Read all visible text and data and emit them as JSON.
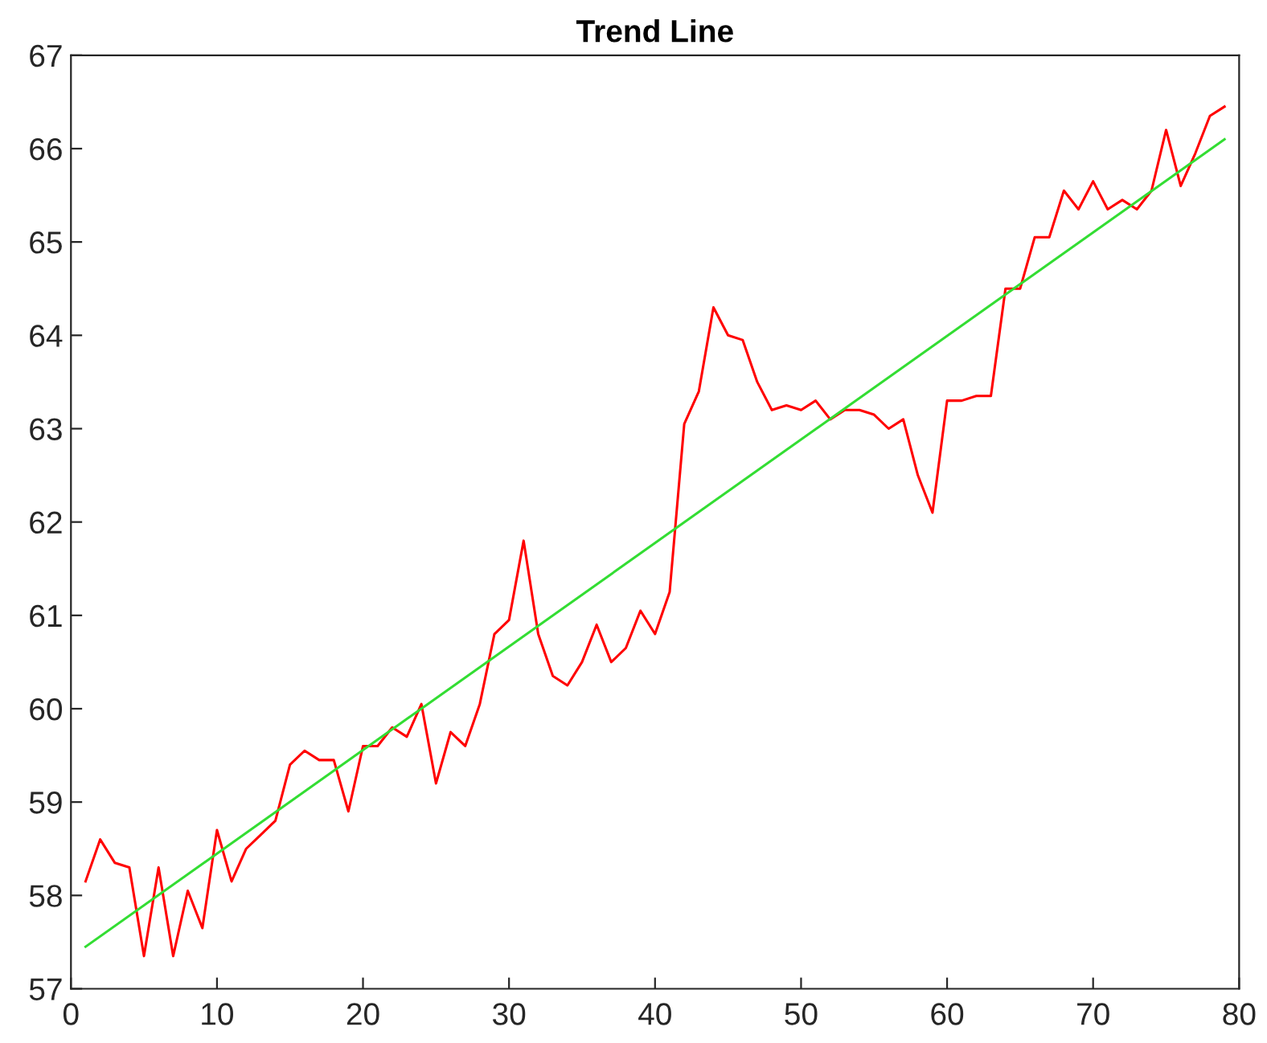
{
  "chart_data": {
    "type": "line",
    "title": "Trend Line",
    "xlim": [
      0,
      80
    ],
    "xticks": [
      0,
      10,
      20,
      30,
      40,
      50,
      60,
      70,
      80
    ],
    "ylim": [
      57,
      67
    ],
    "yticks": [
      57,
      58,
      59,
      60,
      61,
      62,
      63,
      64,
      65,
      66,
      67
    ],
    "grid": false,
    "marker": "none",
    "line_style": "solid",
    "series": [
      {
        "color": "#ff0000",
        "x": [
          1,
          2,
          3,
          4,
          5,
          6,
          7,
          8,
          9,
          10,
          11,
          12,
          13,
          14,
          15,
          16,
          17,
          18,
          19,
          20,
          21,
          22,
          23,
          24,
          25,
          26,
          27,
          28,
          29,
          30,
          31,
          32,
          33,
          34,
          35,
          36,
          37,
          38,
          39,
          40,
          41,
          42,
          43,
          44,
          45,
          46,
          47,
          48,
          49,
          50,
          51,
          52,
          53,
          54,
          55,
          56,
          57,
          58,
          59,
          60,
          61,
          62,
          63,
          64,
          65,
          66,
          67,
          68,
          69,
          70,
          71,
          72,
          73,
          74,
          75,
          76,
          77,
          78,
          79
        ],
        "values": [
          58.15,
          58.6,
          58.35,
          58.3,
          57.35,
          58.3,
          57.35,
          58.05,
          57.65,
          58.7,
          58.15,
          58.5,
          58.65,
          58.8,
          59.4,
          59.55,
          59.45,
          59.45,
          58.9,
          59.6,
          59.6,
          59.8,
          59.7,
          60.05,
          59.2,
          59.75,
          59.6,
          60.05,
          60.8,
          60.95,
          61.8,
          60.8,
          60.35,
          60.25,
          60.5,
          60.9,
          60.5,
          60.65,
          61.05,
          60.8,
          61.25,
          63.05,
          63.4,
          64.3,
          64.0,
          63.95,
          63.5,
          63.2,
          63.25,
          63.2,
          63.3,
          63.1,
          63.2,
          63.2,
          63.15,
          63.0,
          63.1,
          62.5,
          62.1,
          63.3,
          63.3,
          63.35,
          63.35,
          64.5,
          64.5,
          65.05,
          65.05,
          65.55,
          65.35,
          65.65,
          65.35,
          65.45,
          65.35,
          65.55,
          66.2,
          65.6,
          65.95,
          66.35,
          66.45
        ]
      },
      {
        "color": "#33dd33",
        "x": [
          1,
          79
        ],
        "values": [
          57.45,
          66.1
        ]
      }
    ]
  }
}
